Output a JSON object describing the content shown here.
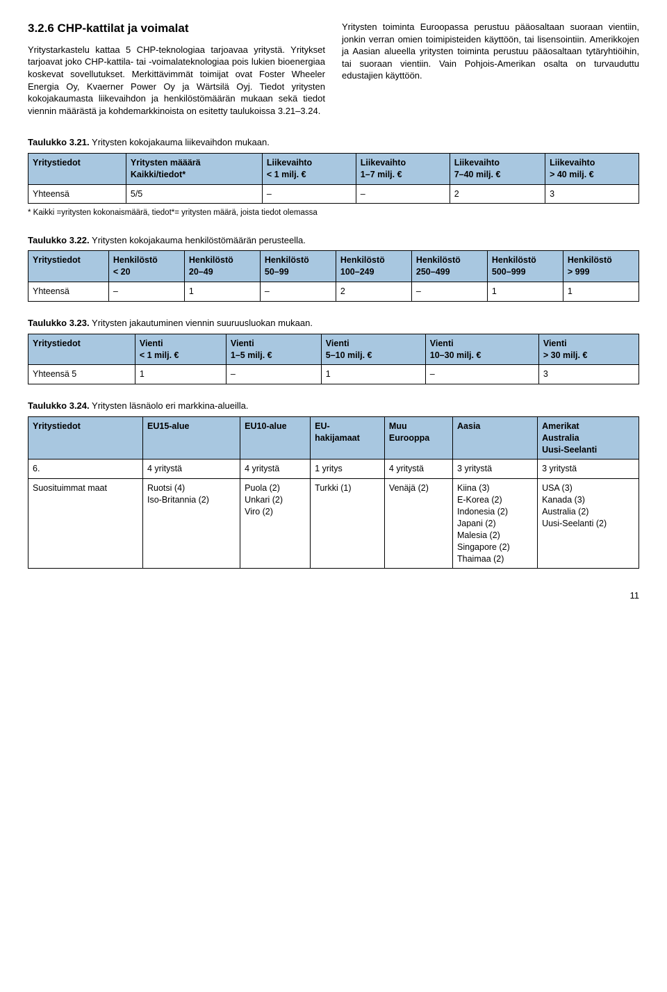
{
  "section": {
    "heading": "3.2.6 CHP-kattilat ja voimalat",
    "para_left": "Yritystarkastelu kattaa 5 CHP-teknologiaa tarjoavaa yritystä. Yritykset tarjoavat joko CHP-kattila- tai -voimalateknologiaa pois lukien bioenergiaa koskevat sovellutukset. Merkittävimmät toimijat ovat Foster Wheeler Energia Oy, Kvaerner Power Oy ja Wärtsilä Oyj. Tiedot yritysten kokojakaumasta liikevaihdon ja henkilöstömäärän mukaan sekä tiedot viennin määrästä ja kohdemarkkinoista on esitetty taulukoissa 3.21–3.24.",
    "para_right": "Yritysten toiminta Euroopassa perustuu pääosaltaan suoraan vientiin, jonkin verran omien toimipisteiden käyttöön, tai lisensointiin. Amerikkojen ja Aasian alueella yritysten toiminta perustuu pääosaltaan tytäryhtiöihin, tai suoraan vientiin. Vain Pohjois-Amerikan osalta on turvauduttu edustajien käyttöön."
  },
  "table21": {
    "caption_bold": "Taulukko 3.21.",
    "caption_rest": " Yritysten kokojakauma liikevaihdon mukaan.",
    "headers": [
      "Yritystiedot",
      "Yritysten määärä\nKaikki/tiedot*",
      "Liikevaihto\n< 1 milj. €",
      "Liikevaihto\n1–7 milj. €",
      "Liikevaihto\n7–40 milj. €",
      "Liikevaihto\n> 40 milj. €"
    ],
    "row": [
      "Yhteensä",
      "5/5",
      "–",
      "–",
      "2",
      "3"
    ],
    "footnote": "* Kaikki =yritysten kokonaismäärä, tiedot*= yritysten määrä, joista tiedot olemassa"
  },
  "table22": {
    "caption_bold": "Taulukko 3.22.",
    "caption_rest": " Yritysten kokojakauma henkilöstömäärän perusteella.",
    "headers": [
      "Yritystiedot",
      "Henkilöstö\n< 20",
      "Henkilöstö\n20–49",
      "Henkilöstö\n50–99",
      "Henkilöstö\n100–249",
      "Henkilöstö\n250–499",
      "Henkilöstö\n500–999",
      "Henkilöstö\n> 999"
    ],
    "row": [
      "Yhteensä",
      "–",
      "1",
      "–",
      "2",
      "–",
      "1",
      "1"
    ]
  },
  "table23": {
    "caption_bold": "Taulukko 3.23.",
    "caption_rest": " Yritysten jakautuminen viennin suuruusluokan mukaan.",
    "headers": [
      "Yritystiedot",
      "Vienti\n< 1 milj. €",
      "Vienti\n1–5 milj. €",
      "Vienti\n5–10 milj. €",
      "Vienti\n10–30 milj. €",
      "Vienti\n> 30 milj. €"
    ],
    "row": [
      "Yhteensä 5",
      "1",
      "–",
      "1",
      "–",
      "3"
    ]
  },
  "table24": {
    "caption_bold": "Taulukko 3.24.",
    "caption_rest": " Yritysten läsnäolo eri markkina-alueilla.",
    "headers": [
      "Yritystiedot",
      "EU15-alue",
      "EU10-alue",
      "EU-\nhakijamaat",
      "Muu\nEurooppa",
      "Aasia",
      "Amerikat\nAustralia\nUusi-Seelanti"
    ],
    "row1": [
      "6.",
      "4 yritystä",
      "4 yritystä",
      "1 yritys",
      "4 yritystä",
      "3 yritystä",
      "3 yritystä"
    ],
    "row2": [
      "Suosituimmat maat",
      "Ruotsi (4)\nIso-Britannia (2)",
      "Puola (2)\nUnkari (2)\nViro (2)",
      "Turkki (1)",
      "Venäjä (2)",
      "Kiina (3)\nE-Korea (2)\nIndonesia (2)\nJapani (2)\nMalesia (2)\nSingapore (2)\nThaimaa (2)",
      "USA (3)\nKanada (3)\nAustralia (2)\nUusi-Seelanti (2)"
    ]
  },
  "page_number": "11"
}
